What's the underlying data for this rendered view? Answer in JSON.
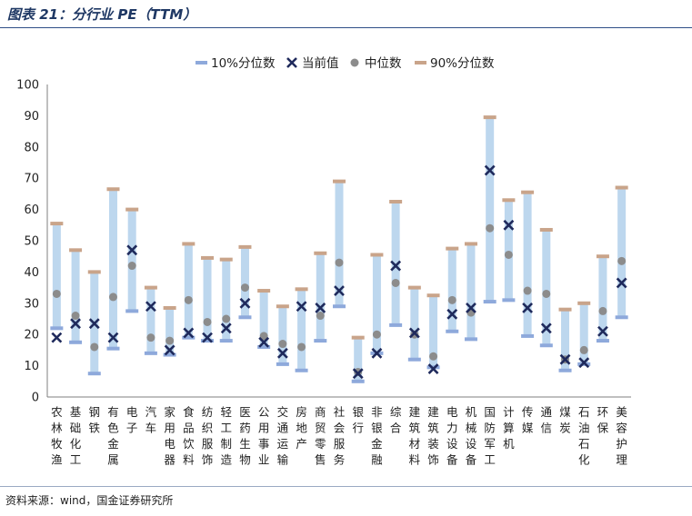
{
  "header": {
    "title": "图表 21：分行业 PE（TTM）"
  },
  "footer": {
    "source": "资料来源：wind，国金证券研究所"
  },
  "colors": {
    "range_bar": "#bdd7ee",
    "p10_cap": "#8ea9db",
    "p90_cap": "#c9a48a",
    "current_marker": "#1f2a5c",
    "median_marker": "#8c8c8c",
    "title": "#1f3864"
  },
  "chart_data": {
    "type": "range-marker",
    "title": "分行业 PE（TTM）",
    "xlabel": "",
    "ylabel": "",
    "ylim": [
      0,
      100
    ],
    "yticks": [
      0,
      10,
      20,
      30,
      40,
      50,
      60,
      70,
      80,
      90,
      100
    ],
    "legend": {
      "placement": "top-center",
      "items": [
        {
          "key": "p10",
          "label": "10%分位数"
        },
        {
          "key": "current",
          "label": "当前值"
        },
        {
          "key": "median",
          "label": "中位数"
        },
        {
          "key": "p90",
          "label": "90%分位数"
        }
      ]
    },
    "categories": [
      "农林牧渔",
      "基础化工",
      "钢铁",
      "有色金属",
      "电子",
      "汽车",
      "家用电器",
      "食品饮料",
      "纺织服饰",
      "轻工制造",
      "医药生物",
      "公用事业",
      "交通运输",
      "房地产",
      "商贸零售",
      "社会服务",
      "银行",
      "非银金融",
      "综合",
      "建筑材料",
      "建筑装饰",
      "电力设备",
      "机械设备",
      "国防军工",
      "计算机",
      "传媒",
      "通信",
      "煤炭",
      "石油石化",
      "环保",
      "美容护理"
    ],
    "series": [
      {
        "name": "10%分位数",
        "key": "p10",
        "values": [
          22.0,
          17.5,
          7.5,
          15.5,
          27.5,
          14.0,
          13.5,
          19.0,
          18.0,
          18.0,
          25.5,
          16.0,
          10.5,
          8.5,
          18.0,
          29.0,
          5.0,
          14.0,
          23.0,
          12.0,
          9.5,
          21.0,
          18.5,
          30.5,
          31.0,
          19.5,
          16.5,
          8.5,
          10.5,
          18.0,
          25.5
        ]
      },
      {
        "name": "当前值",
        "key": "current",
        "values": [
          19.0,
          23.5,
          23.5,
          19.0,
          47.0,
          29.0,
          15.0,
          20.5,
          19.0,
          22.0,
          30.0,
          17.5,
          14.0,
          29.0,
          28.5,
          34.0,
          7.5,
          14.0,
          42.0,
          20.5,
          9.0,
          26.5,
          28.5,
          72.5,
          55.0,
          28.5,
          22.0,
          12.0,
          11.0,
          21.0,
          36.5
        ]
      },
      {
        "name": "中位数",
        "key": "median",
        "values": [
          33.0,
          26.0,
          16.0,
          32.0,
          42.0,
          19.0,
          18.0,
          31.0,
          24.0,
          25.0,
          35.0,
          19.5,
          17.0,
          16.0,
          26.0,
          43.0,
          8.0,
          20.0,
          36.5,
          20.0,
          13.0,
          31.0,
          27.0,
          54.0,
          45.5,
          34.0,
          33.0,
          12.0,
          15.0,
          27.5,
          43.5
        ]
      },
      {
        "name": "90%分位数",
        "key": "p90",
        "values": [
          55.5,
          47.0,
          40.0,
          66.5,
          60.0,
          35.0,
          28.5,
          49.0,
          44.5,
          44.0,
          48.0,
          34.0,
          29.0,
          34.5,
          46.0,
          69.0,
          19.0,
          45.5,
          62.5,
          35.0,
          32.5,
          47.5,
          49.0,
          89.5,
          63.0,
          65.5,
          53.5,
          28.0,
          30.0,
          45.0,
          67.0
        ]
      }
    ]
  }
}
